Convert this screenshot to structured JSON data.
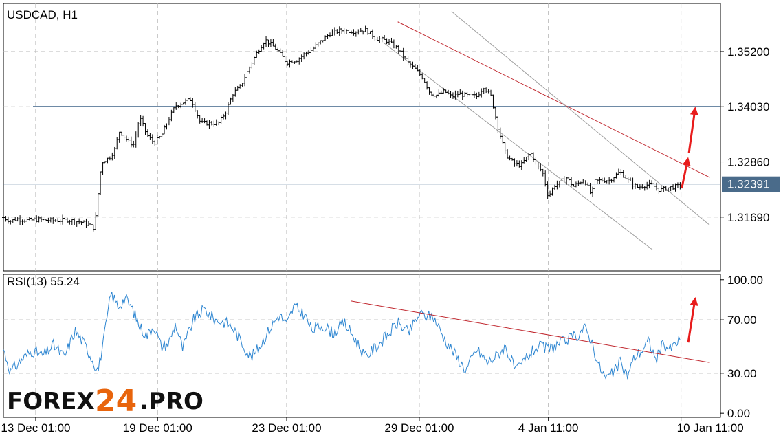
{
  "chart_data": [
    {
      "type": "line",
      "title": "USDCAD, H1",
      "symbol": "USDCAD",
      "timeframe": "H1",
      "y_ticks": [
        1.3169,
        1.3286,
        1.3403,
        1.352
      ],
      "y_tick_labels": [
        "1.31690",
        "1.32860",
        "1.34030",
        "1.35200"
      ],
      "current_price": 1.32391,
      "current_price_label": "1.32391",
      "ylim": [
        1.3055,
        1.3622
      ],
      "horizontal_levels": [
        1.3404,
        1.32391
      ],
      "x_tick_labels": [
        "13 Dec 01:00",
        "19 Dec 01:00",
        "23 Dec 01:00",
        "29 Dec 01:00",
        "4 Jan 11:00",
        "10 Jan 11:00"
      ],
      "x_tick_index": [
        0.045,
        0.215,
        0.395,
        0.58,
        0.76,
        0.945
      ],
      "series": [
        {
          "x": [
            0.0,
            0.01,
            0.02,
            0.035,
            0.05,
            0.07,
            0.09,
            0.11,
            0.12,
            0.126,
            0.13,
            0.133,
            0.137,
            0.142,
            0.148,
            0.155,
            0.162,
            0.17,
            0.176,
            0.182,
            0.19,
            0.2,
            0.21,
            0.22,
            0.23,
            0.24,
            0.25,
            0.262,
            0.275,
            0.29,
            0.3,
            0.31,
            0.32,
            0.33,
            0.345,
            0.355,
            0.365,
            0.38,
            0.395,
            0.41,
            0.42,
            0.43,
            0.44,
            0.455,
            0.47,
            0.49,
            0.505,
            0.52,
            0.535,
            0.55,
            0.565,
            0.575,
            0.585,
            0.595,
            0.605,
            0.615,
            0.625,
            0.635,
            0.645,
            0.66,
            0.67,
            0.68,
            0.69,
            0.7,
            0.712,
            0.722,
            0.735,
            0.745,
            0.752,
            0.76,
            0.768,
            0.775,
            0.785,
            0.795,
            0.81,
            0.82,
            0.825,
            0.835,
            0.845,
            0.86,
            0.875,
            0.885,
            0.895,
            0.905,
            0.915,
            0.93,
            0.94,
            0.945
          ],
          "close": [
            1.3168,
            1.3161,
            1.3165,
            1.3162,
            1.3164,
            1.3161,
            1.3163,
            1.3158,
            1.3152,
            1.3146,
            1.318,
            1.3238,
            1.3285,
            1.329,
            1.3295,
            1.3312,
            1.3352,
            1.3337,
            1.3327,
            1.3323,
            1.3381,
            1.3343,
            1.3326,
            1.3341,
            1.3375,
            1.3405,
            1.3412,
            1.3419,
            1.3368,
            1.3368,
            1.3368,
            1.3392,
            1.3431,
            1.3445,
            1.3493,
            1.3522,
            1.3545,
            1.3526,
            1.3497,
            1.3503,
            1.3515,
            1.3524,
            1.3538,
            1.3558,
            1.3565,
            1.3563,
            1.3566,
            1.3548,
            1.3543,
            1.3526,
            1.3495,
            1.3481,
            1.3465,
            1.3432,
            1.3427,
            1.3436,
            1.3424,
            1.3431,
            1.3427,
            1.3425,
            1.3446,
            1.3425,
            1.3358,
            1.3303,
            1.3282,
            1.3279,
            1.3306,
            1.3277,
            1.3264,
            1.3212,
            1.3236,
            1.3241,
            1.3253,
            1.3234,
            1.3249,
            1.3215,
            1.3245,
            1.3247,
            1.3247,
            1.3265,
            1.3241,
            1.3232,
            1.3237,
            1.3237,
            1.3226,
            1.3232,
            1.3234,
            1.3239
          ]
        }
      ],
      "trendlines": [
        {
          "color": "#c0262d",
          "from": [
            0.55,
            1.3583
          ],
          "to": [
            0.985,
            1.3253
          ]
        },
        {
          "color": "#9e9e9e",
          "from": [
            0.625,
            1.3605
          ],
          "to": [
            0.985,
            1.3152
          ]
        },
        {
          "color": "#9e9e9e",
          "from": [
            0.53,
            1.3539
          ],
          "to": [
            0.905,
            1.31
          ]
        }
      ],
      "arrows": [
        {
          "color": "#e81c1c",
          "from": [
            0.946,
            1.323
          ],
          "to": [
            0.955,
            1.3296
          ]
        },
        {
          "color": "#e81c1c",
          "from": [
            0.956,
            1.3305
          ],
          "to": [
            0.965,
            1.3403
          ]
        }
      ]
    },
    {
      "type": "line",
      "title": "RSI(13) 55.24",
      "indicator": "RSI(13)",
      "current_value": 55.24,
      "ylim": [
        -3,
        104
      ],
      "y_ticks": [
        0,
        30,
        70,
        100
      ],
      "y_tick_labels": [
        "0.00",
        "30.00",
        "70.00",
        "100.00"
      ],
      "series": [
        {
          "x": [
            0.0,
            0.01,
            0.025,
            0.04,
            0.055,
            0.07,
            0.085,
            0.1,
            0.115,
            0.126,
            0.132,
            0.14,
            0.15,
            0.16,
            0.17,
            0.18,
            0.19,
            0.2,
            0.21,
            0.22,
            0.23,
            0.24,
            0.25,
            0.265,
            0.28,
            0.295,
            0.31,
            0.32,
            0.33,
            0.345,
            0.355,
            0.37,
            0.385,
            0.395,
            0.405,
            0.42,
            0.43,
            0.445,
            0.46,
            0.475,
            0.49,
            0.505,
            0.52,
            0.535,
            0.55,
            0.565,
            0.58,
            0.6,
            0.615,
            0.63,
            0.645,
            0.66,
            0.675,
            0.69,
            0.7,
            0.715,
            0.73,
            0.745,
            0.76,
            0.775,
            0.79,
            0.8,
            0.81,
            0.82,
            0.83,
            0.84,
            0.85,
            0.86,
            0.87,
            0.88,
            0.89,
            0.9,
            0.91,
            0.92,
            0.93,
            0.945
          ],
          "values": [
            48,
            31,
            40,
            47,
            43,
            51,
            42,
            62,
            50,
            38,
            32,
            55,
            90,
            80,
            86,
            78,
            65,
            58,
            66,
            50,
            52,
            67,
            48,
            70,
            78,
            70,
            68,
            64,
            55,
            42,
            48,
            62,
            74,
            66,
            80,
            74,
            62,
            66,
            60,
            68,
            56,
            42,
            50,
            58,
            68,
            60,
            74,
            72,
            56,
            44,
            32,
            48,
            38,
            44,
            50,
            31,
            42,
            50,
            48,
            52,
            56,
            58,
            64,
            55,
            36,
            26,
            30,
            38,
            28,
            42,
            47,
            54,
            40,
            52,
            48,
            56
          ]
        }
      ],
      "trendlines": [
        {
          "color": "#c0262d",
          "from": [
            0.485,
            84
          ],
          "to": [
            0.985,
            38
          ]
        }
      ],
      "arrows": [
        {
          "color": "#e81c1c",
          "from": [
            0.955,
            53
          ],
          "to": [
            0.965,
            87
          ]
        }
      ]
    }
  ],
  "brand": {
    "part1": "FOREX",
    "part2": "24",
    "part3": ".PRO"
  }
}
